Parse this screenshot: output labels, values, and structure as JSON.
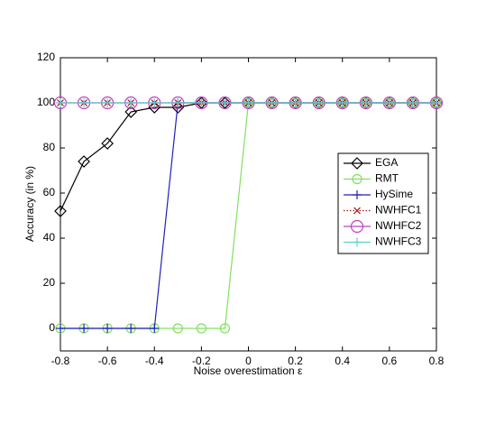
{
  "chart_data": {
    "type": "line",
    "x_label": "Noise overestimation ε",
    "y_label": "Accuracy (in %)",
    "x": [
      -0.8,
      -0.7,
      -0.6,
      -0.5,
      -0.4,
      -0.3,
      -0.2,
      -0.1,
      0,
      0.1,
      0.2,
      0.3,
      0.4,
      0.5,
      0.6,
      0.7,
      0.8
    ],
    "xlim": [
      -0.8,
      0.8
    ],
    "xticks": [
      -0.8,
      -0.6,
      -0.4,
      -0.2,
      0,
      0.2,
      0.4,
      0.6,
      0.8
    ],
    "ylim": [
      -10,
      120
    ],
    "yticks": [
      0,
      20,
      40,
      60,
      80,
      100,
      120
    ],
    "legend": "right",
    "series": [
      {
        "name": "EGA",
        "color": "#000000",
        "marker": "diamond",
        "dash": "solid",
        "values": [
          52,
          74,
          82,
          96,
          98,
          98,
          100,
          100,
          100,
          100,
          100,
          100,
          100,
          100,
          100,
          100,
          100
        ]
      },
      {
        "name": "RMT",
        "color": "#80e060",
        "marker": "circle",
        "dash": "solid",
        "values": [
          0,
          0,
          0,
          0,
          0,
          0,
          0,
          0,
          100,
          100,
          100,
          100,
          100,
          100,
          100,
          100,
          100
        ]
      },
      {
        "name": "HySime",
        "color": "#2020c0",
        "marker": "plus",
        "dash": "solid",
        "values": [
          0,
          0,
          0,
          0,
          0,
          100,
          100,
          100,
          100,
          100,
          100,
          100,
          100,
          100,
          100,
          100,
          100
        ]
      },
      {
        "name": "NWHFC1",
        "color": "#a01010",
        "marker": "x",
        "dash": "dotted",
        "values": [
          100,
          100,
          100,
          100,
          100,
          100,
          100,
          100,
          100,
          100,
          100,
          100,
          100,
          100,
          100,
          100,
          100
        ]
      },
      {
        "name": "NWHFC2",
        "color": "#c040c0",
        "marker": "bigcircle",
        "dash": "solid",
        "values": [
          100,
          100,
          100,
          100,
          100,
          100,
          100,
          100,
          100,
          100,
          100,
          100,
          100,
          100,
          100,
          100,
          100
        ]
      },
      {
        "name": "NWHFC3",
        "color": "#60d0d0",
        "marker": "plus",
        "dash": "solid",
        "values": [
          100,
          100,
          100,
          100,
          100,
          100,
          100,
          100,
          100,
          100,
          100,
          100,
          100,
          100,
          100,
          100,
          100
        ]
      }
    ]
  }
}
